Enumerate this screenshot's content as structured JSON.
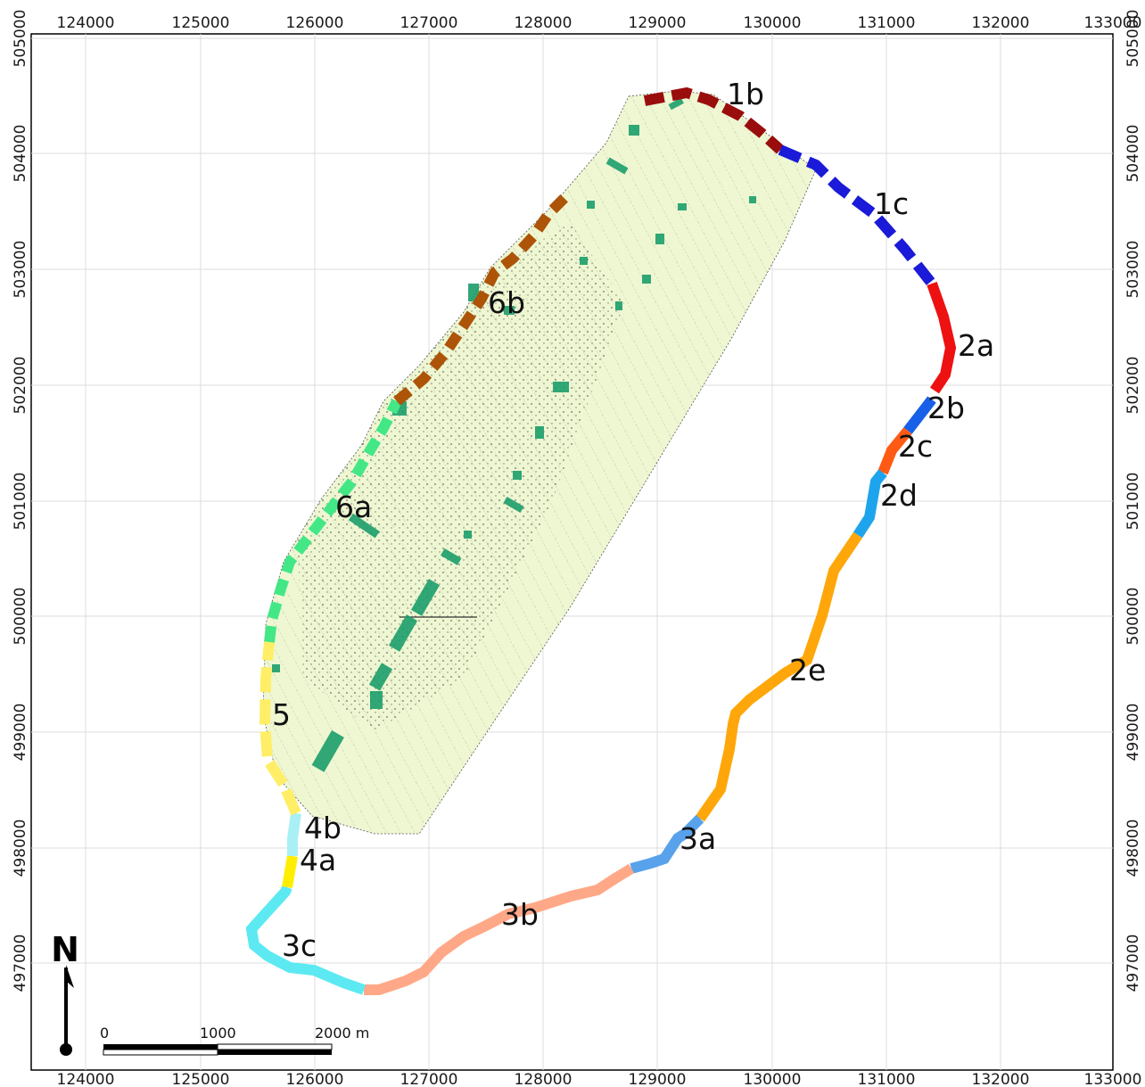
{
  "map": {
    "x_ticks": [
      "124000",
      "125000",
      "126000",
      "127000",
      "128000",
      "129000",
      "130000",
      "131000",
      "132000",
      "133000"
    ],
    "y_ticks": [
      "505000",
      "504000",
      "503000",
      "502000",
      "501000",
      "500000",
      "499000",
      "498000",
      "497000"
    ],
    "north_label": "N",
    "scale": {
      "zero": "0",
      "mid": "1000",
      "end": "2000 m"
    },
    "colors": {
      "polder_fill": "#eef7d2",
      "green_patches": "#1a9e6a",
      "seg_1b": "#9a0d0d",
      "seg_1c": "#1a1ad8",
      "seg_2a": "#ee1111",
      "seg_2b": "#1960e8",
      "seg_2c": "#ff5a14",
      "seg_2d": "#1ea4ec",
      "seg_2e": "#ffa60a",
      "seg_3a": "#58a2ec",
      "seg_3b": "#ffa887",
      "seg_3c": "#5ce9f2",
      "seg_4a": "#ffee00",
      "seg_4b": "#a9f0f5",
      "seg_5": "#ffee66",
      "seg_6a": "#43e786",
      "seg_6b": "#ad5408"
    },
    "segments": [
      {
        "id": "1b",
        "label": "1b"
      },
      {
        "id": "1c",
        "label": "1c"
      },
      {
        "id": "2a",
        "label": "2a"
      },
      {
        "id": "2b",
        "label": "2b"
      },
      {
        "id": "2c",
        "label": "2c"
      },
      {
        "id": "2d",
        "label": "2d"
      },
      {
        "id": "2e",
        "label": "2e"
      },
      {
        "id": "3a",
        "label": "3a"
      },
      {
        "id": "3b",
        "label": "3b"
      },
      {
        "id": "3c",
        "label": "3c"
      },
      {
        "id": "4a",
        "label": "4a"
      },
      {
        "id": "4b",
        "label": "4b"
      },
      {
        "id": "5",
        "label": "5"
      },
      {
        "id": "6a",
        "label": "6a"
      },
      {
        "id": "6b",
        "label": "6b"
      }
    ]
  }
}
